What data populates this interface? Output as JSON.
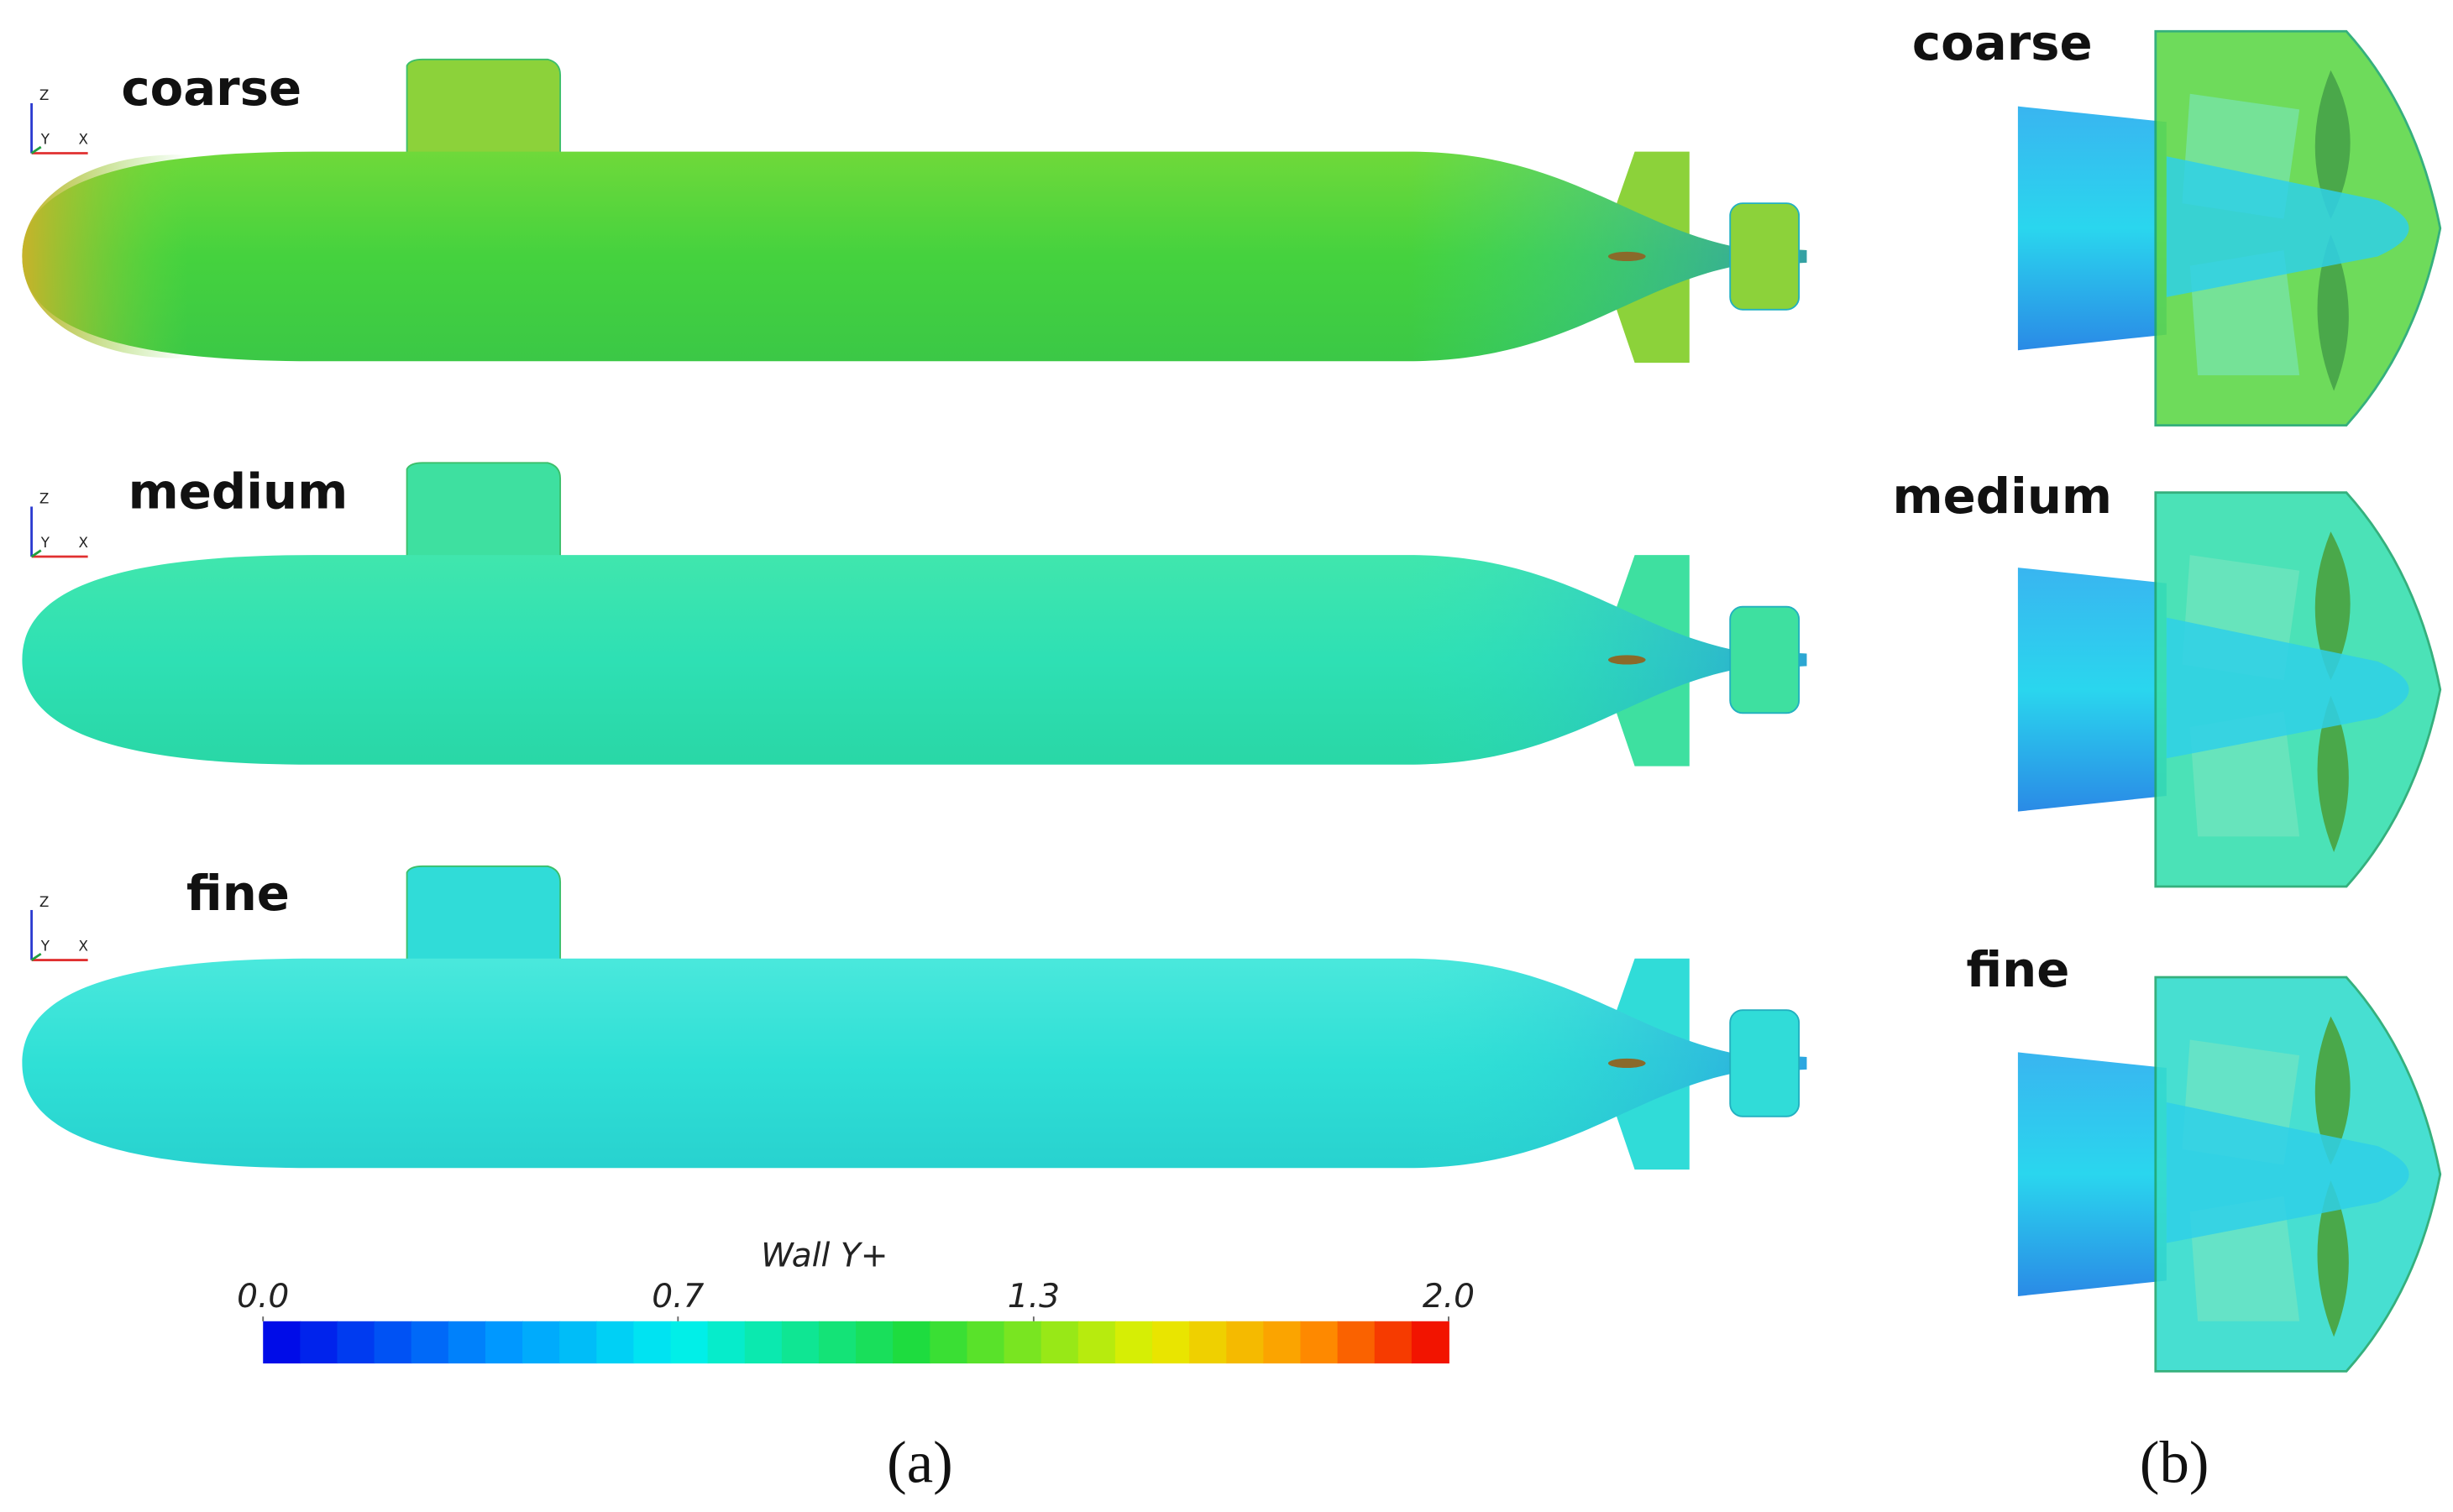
{
  "panel_a": {
    "rows": [
      {
        "label": "coarse"
      },
      {
        "label": "medium"
      },
      {
        "label": "fine"
      }
    ],
    "caption": "(a)"
  },
  "panel_b": {
    "rows": [
      {
        "label": "coarse"
      },
      {
        "label": "medium"
      },
      {
        "label": "fine"
      }
    ],
    "caption": "(b)"
  },
  "axes_triad": {
    "z": "Z",
    "y": "Y",
    "x": "X"
  },
  "colorbar": {
    "title": "Wall Y+",
    "range": [
      0,
      2
    ],
    "ticks": [
      {
        "value": 0,
        "label": "0.0"
      },
      {
        "value": 0.7,
        "label": "0.7"
      },
      {
        "value": 1.3,
        "label": "1.3"
      },
      {
        "value": 2,
        "label": "2.0"
      }
    ]
  }
}
